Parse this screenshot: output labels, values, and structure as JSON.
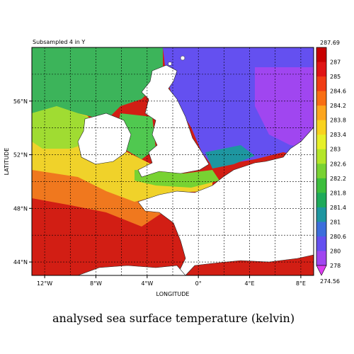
{
  "subtitle": "Subsampled 4 in Y",
  "caption": "analysed sea surface temperature (kelvin)",
  "axes": {
    "xlabel": "LONGITUDE",
    "ylabel": "LATITUDE",
    "x_ticks": [
      {
        "value": -12,
        "label": "12°W"
      },
      {
        "value": -8,
        "label": "8°W"
      },
      {
        "value": -4,
        "label": "4°W"
      },
      {
        "value": 0,
        "label": "0°"
      },
      {
        "value": 4,
        "label": "4°E"
      },
      {
        "value": 8,
        "label": "8°E"
      }
    ],
    "y_ticks": [
      {
        "value": 44,
        "label": "44°N"
      },
      {
        "value": 48,
        "label": "48°N"
      },
      {
        "value": 52,
        "label": "52°N"
      },
      {
        "value": 56,
        "label": "56°N"
      }
    ],
    "x_range": [
      -13,
      9
    ],
    "y_range": [
      43,
      60
    ],
    "grid": "dashed"
  },
  "colorbar": {
    "top_label": "287.69",
    "bottom_label": "274.56",
    "levels": [
      {
        "label": "287",
        "color": "#c80000"
      },
      {
        "label": "285",
        "color": "#e01414"
      },
      {
        "label": "284.6",
        "color": "#f03c14"
      },
      {
        "label": "284.2",
        "color": "#f86e14"
      },
      {
        "label": "283.8",
        "color": "#fca51e"
      },
      {
        "label": "283.4",
        "color": "#f8d21e"
      },
      {
        "label": "283",
        "color": "#e6f028"
      },
      {
        "label": "282.6",
        "color": "#b4e628"
      },
      {
        "label": "282.2",
        "color": "#78d232"
      },
      {
        "label": "281.8",
        "color": "#3cbe3c"
      },
      {
        "label": "281.4",
        "color": "#1eaa5a"
      },
      {
        "label": "281",
        "color": "#1e96a0"
      },
      {
        "label": "280.6",
        "color": "#3c6edc"
      },
      {
        "label": "280",
        "color": "#6450f0"
      },
      {
        "label": "278",
        "color": "#a046f0"
      }
    ],
    "bottom_color": "#dc3cf0"
  },
  "colors": {
    "land": "#ffffff",
    "ocean_atlantic": "#d21e14",
    "north_sea": "#6450f0"
  }
}
